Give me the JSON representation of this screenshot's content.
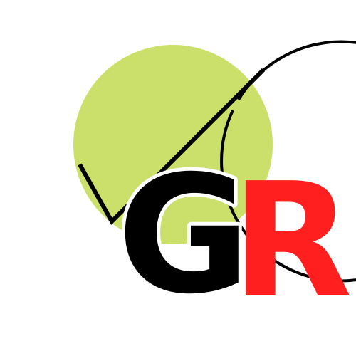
{
  "logo": {
    "letters": [
      "G",
      "R"
    ],
    "colors": {
      "background": "#ffffff",
      "circle_fill": "#cbe06b",
      "outline": "#000000",
      "letter_g": "#000000",
      "letter_r": "#ff1f1f"
    }
  }
}
